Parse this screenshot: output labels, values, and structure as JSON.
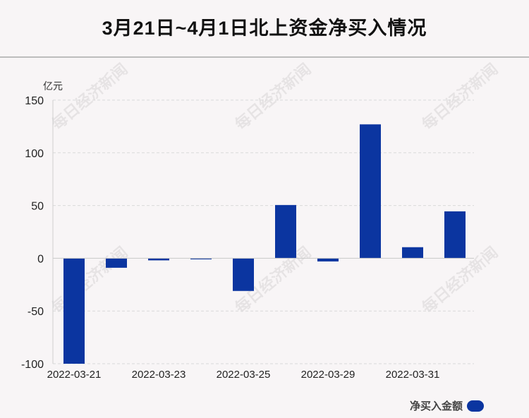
{
  "title": "3月21日~4月1日北上资金净买入情况",
  "unit_label": "亿元",
  "legend_label": "净买入金额",
  "watermark_text": "每日经济新闻",
  "colors": {
    "bar": "#0b35a0",
    "background": "#f8f5f6"
  },
  "chart_data": {
    "type": "bar",
    "categories": [
      "2022-03-21",
      "2022-03-22",
      "2022-03-23",
      "2022-03-24",
      "2022-03-25",
      "2022-03-28",
      "2022-03-29",
      "2022-03-30",
      "2022-03-31",
      "2022-04-01"
    ],
    "x_tick_labels": [
      "2022-03-21",
      "2022-03-23",
      "2022-03-25",
      "2022-03-29",
      "2022-03-31"
    ],
    "y_ticks": [
      150,
      100,
      50,
      0,
      -50,
      -100
    ],
    "ylim": [
      -100,
      150
    ],
    "series": [
      {
        "name": "净买入金额",
        "values": [
          -100,
          -9,
          -2,
          -1,
          -31,
          50.5,
          -3,
          127,
          10.5,
          44.5
        ]
      }
    ],
    "grid": true,
    "legend": "bottom-right"
  }
}
